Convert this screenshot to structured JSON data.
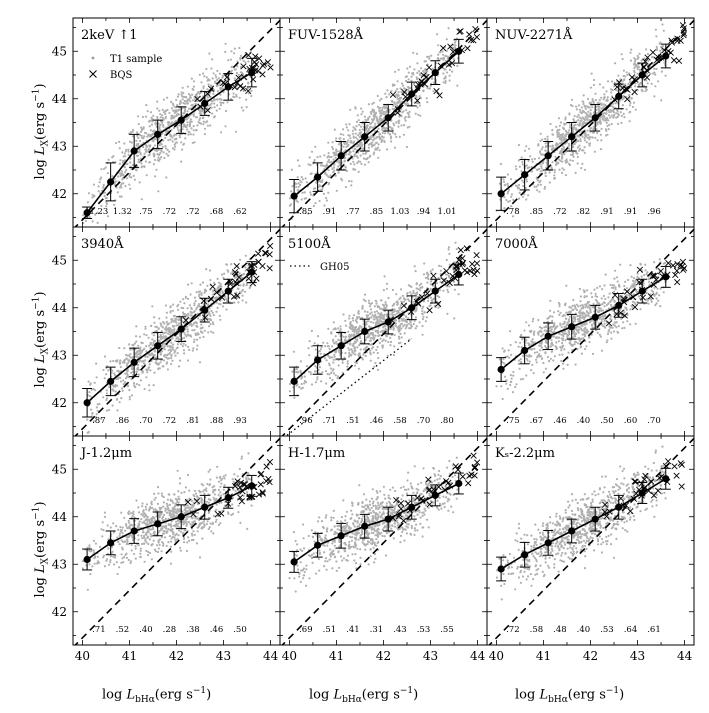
{
  "figure": {
    "xaxis": {
      "ticks": [
        "40",
        "41",
        "42",
        "43",
        "44"
      ],
      "range": [
        39.8,
        44.2
      ]
    },
    "yaxis": {
      "ticks": [
        "42",
        "43",
        "44",
        "45"
      ],
      "range": [
        41.3,
        45.7
      ]
    },
    "xlabel_parts": {
      "main": "log ",
      "L": "L",
      "sub_row": "bHα",
      "sub_col1": "bHα",
      "unit": "(erg s",
      "exp": "−1",
      "close": ")"
    },
    "ylabel_parts": {
      "main": "log ",
      "L": "L",
      "sub": "X",
      "unit": "(erg s",
      "exp": "−1",
      "close": ")"
    },
    "legend": {
      "t1": "T1 sample",
      "bqs": "BQS",
      "gh05": "GH05"
    }
  },
  "chart_data": [
    {
      "type": "scatter",
      "title": "2keV ↑1",
      "offset": 1.45,
      "x": [
        40.1,
        40.6,
        41.1,
        41.6,
        42.1,
        42.6,
        43.1,
        43.6
      ],
      "y": [
        41.6,
        42.25,
        42.9,
        43.25,
        43.55,
        43.9,
        44.25,
        44.55
      ],
      "yerr": [
        0.12,
        0.4,
        0.35,
        0.3,
        0.28,
        0.25,
        0.28,
        0.3
      ],
      "slopes": [
        "1.23",
        "1.32",
        ".75",
        ".72",
        ".72",
        ".68",
        ".62"
      ]
    },
    {
      "type": "scatter",
      "title": "FUV-1528Å",
      "offset": 1.45,
      "x": [
        40.1,
        40.6,
        41.1,
        41.6,
        42.1,
        42.6,
        43.1,
        43.6
      ],
      "y": [
        41.95,
        42.35,
        42.8,
        43.2,
        43.6,
        44.1,
        44.55,
        45.0
      ],
      "yerr": [
        0.35,
        0.3,
        0.3,
        0.3,
        0.28,
        0.25,
        0.25,
        0.25
      ],
      "slopes": [
        ".85",
        ".91",
        ".77",
        ".85",
        "1.03",
        ".94",
        "1.01"
      ]
    },
    {
      "type": "scatter",
      "title": "NUV-2271Å",
      "offset": 1.45,
      "x": [
        40.1,
        40.6,
        41.1,
        41.6,
        42.1,
        42.6,
        43.1,
        43.6
      ],
      "y": [
        42.0,
        42.4,
        42.8,
        43.2,
        43.6,
        44.05,
        44.5,
        44.9
      ],
      "yerr": [
        0.35,
        0.32,
        0.3,
        0.3,
        0.28,
        0.26,
        0.25,
        0.25
      ],
      "slopes": [
        ".78",
        ".85",
        ".72",
        ".82",
        ".91",
        ".91",
        ".96"
      ]
    },
    {
      "type": "scatter",
      "title": "3940Å",
      "offset": 1.45,
      "x": [
        40.1,
        40.6,
        41.1,
        41.6,
        42.1,
        42.6,
        43.1,
        43.6
      ],
      "y": [
        42.0,
        42.45,
        42.85,
        43.2,
        43.55,
        43.95,
        44.35,
        44.75
      ],
      "yerr": [
        0.3,
        0.3,
        0.3,
        0.28,
        0.26,
        0.25,
        0.25,
        0.22
      ],
      "slopes": [
        ".87",
        ".86",
        ".70",
        ".72",
        ".81",
        ".88",
        ".93"
      ]
    },
    {
      "type": "scatter",
      "title": "5100Å",
      "offset": 1.45,
      "x": [
        40.1,
        40.6,
        41.1,
        41.6,
        42.1,
        42.6,
        43.1,
        43.6
      ],
      "y": [
        42.45,
        42.9,
        43.2,
        43.5,
        43.7,
        44.0,
        44.35,
        44.7
      ],
      "yerr": [
        0.3,
        0.3,
        0.28,
        0.26,
        0.25,
        0.25,
        0.25,
        0.22
      ],
      "slopes": [
        ".96",
        ".71",
        ".51",
        ".46",
        ".58",
        ".70",
        ".80"
      ]
    },
    {
      "type": "scatter",
      "title": "7000Å",
      "offset": 1.45,
      "x": [
        40.1,
        40.6,
        41.1,
        41.6,
        42.1,
        42.6,
        43.1,
        43.6
      ],
      "y": [
        42.7,
        43.1,
        43.4,
        43.6,
        43.8,
        44.05,
        44.35,
        44.65
      ],
      "yerr": [
        0.25,
        0.28,
        0.28,
        0.26,
        0.25,
        0.25,
        0.25,
        0.22
      ],
      "slopes": [
        ".75",
        ".67",
        ".46",
        ".40",
        ".50",
        ".60",
        ".70"
      ]
    },
    {
      "type": "scatter",
      "title": "J-1.2μm",
      "offset": 1.45,
      "x": [
        40.1,
        40.6,
        41.1,
        41.6,
        42.1,
        42.6,
        43.1,
        43.6
      ],
      "y": [
        43.1,
        43.45,
        43.7,
        43.85,
        44.0,
        44.2,
        44.4,
        44.65
      ],
      "yerr": [
        0.22,
        0.25,
        0.26,
        0.25,
        0.25,
        0.25,
        0.22,
        0.22
      ],
      "slopes": [
        ".71",
        ".52",
        ".40",
        ".28",
        ".38",
        ".46",
        ".50"
      ]
    },
    {
      "type": "scatter",
      "title": "H-1.7μm",
      "offset": 1.45,
      "x": [
        40.1,
        40.6,
        41.1,
        41.6,
        42.1,
        42.6,
        43.1,
        43.6
      ],
      "y": [
        43.05,
        43.4,
        43.6,
        43.8,
        43.95,
        44.2,
        44.45,
        44.7
      ],
      "yerr": [
        0.22,
        0.25,
        0.26,
        0.25,
        0.25,
        0.25,
        0.22,
        0.22
      ],
      "slopes": [
        ".69",
        ".51",
        ".41",
        ".31",
        ".43",
        ".53",
        ".55"
      ]
    },
    {
      "type": "scatter",
      "title": "Kₛ-2.2μm",
      "offset": 1.45,
      "x": [
        40.1,
        40.6,
        41.1,
        41.6,
        42.1,
        42.6,
        43.1,
        43.6
      ],
      "y": [
        42.9,
        43.2,
        43.45,
        43.7,
        43.95,
        44.2,
        44.5,
        44.8
      ],
      "yerr": [
        0.25,
        0.26,
        0.26,
        0.25,
        0.25,
        0.25,
        0.22,
        0.22
      ],
      "slopes": [
        ".72",
        ".58",
        ".48",
        ".40",
        ".53",
        ".64",
        ".61"
      ]
    }
  ]
}
